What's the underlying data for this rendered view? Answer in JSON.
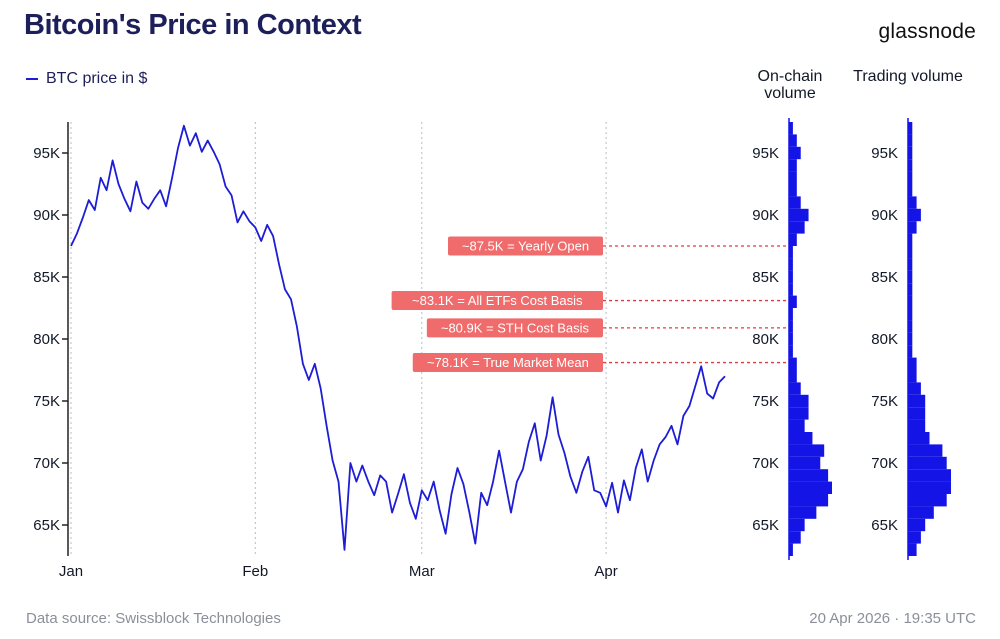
{
  "title": "Bitcoin's Price in Context",
  "brand": "glassnode",
  "legend": {
    "series_label": "BTC price in $"
  },
  "columns": {
    "onchain": "On-chain volume",
    "trading": "Trading volume"
  },
  "footer": {
    "source": "Data source: Swissblock Technologies",
    "timestamp": "20 Apr 2026 · 19:35 UTC"
  },
  "colors": {
    "line": "#1d1dd6",
    "bars": "#1414e6",
    "annotation_bg": "#f06b6b",
    "annotation_line": "#e03c3c",
    "title": "#1c1f5a"
  },
  "chart_data": [
    {
      "type": "line",
      "title": "BTC price in $",
      "ylim": [
        62.5,
        97.5
      ],
      "y_ticks": [
        65,
        70,
        75,
        80,
        85,
        90,
        95
      ],
      "y_tick_labels": [
        "65K",
        "70K",
        "75K",
        "80K",
        "85K",
        "90K",
        "95K"
      ],
      "x_ticks": [
        {
          "label": "Jan",
          "day": 1
        },
        {
          "label": "Feb",
          "day": 32
        },
        {
          "label": "Mar",
          "day": 60
        },
        {
          "label": "Apr",
          "day": 91
        }
      ],
      "xlim": [
        0.5,
        111.5
      ],
      "series": [
        {
          "name": "BTC price in $",
          "points": [
            [
              1,
              87.5
            ],
            [
              2,
              88.5
            ],
            [
              3,
              89.8
            ],
            [
              4,
              91.2
            ],
            [
              5,
              90.4
            ],
            [
              6,
              93.0
            ],
            [
              7,
              92.0
            ],
            [
              8,
              94.4
            ],
            [
              9,
              92.5
            ],
            [
              10,
              91.3
            ],
            [
              11,
              90.3
            ],
            [
              12,
              92.7
            ],
            [
              13,
              91.0
            ],
            [
              14,
              90.5
            ],
            [
              15,
              91.3
            ],
            [
              16,
              92.0
            ],
            [
              17,
              90.7
            ],
            [
              18,
              93.0
            ],
            [
              19,
              95.4
            ],
            [
              20,
              97.2
            ],
            [
              21,
              95.6
            ],
            [
              22,
              96.6
            ],
            [
              23,
              95.1
            ],
            [
              24,
              96.0
            ],
            [
              25,
              95.1
            ],
            [
              26,
              94.1
            ],
            [
              27,
              92.3
            ],
            [
              28,
              91.6
            ],
            [
              29,
              89.4
            ],
            [
              30,
              90.3
            ],
            [
              31,
              89.5
            ],
            [
              32,
              89.0
            ],
            [
              33,
              87.9
            ],
            [
              34,
              89.2
            ],
            [
              35,
              88.3
            ],
            [
              36,
              86.0
            ],
            [
              37,
              84.0
            ],
            [
              38,
              83.2
            ],
            [
              39,
              81.0
            ],
            [
              40,
              78.0
            ],
            [
              41,
              76.7
            ],
            [
              42,
              78.0
            ],
            [
              43,
              76.0
            ],
            [
              44,
              73.0
            ],
            [
              45,
              70.2
            ],
            [
              46,
              68.5
            ],
            [
              47,
              63.0
            ],
            [
              48,
              70.0
            ],
            [
              49,
              68.5
            ],
            [
              50,
              69.8
            ],
            [
              51,
              68.5
            ],
            [
              52,
              67.4
            ],
            [
              53,
              69.0
            ],
            [
              54,
              68.5
            ],
            [
              55,
              66.0
            ],
            [
              56,
              67.5
            ],
            [
              57,
              69.1
            ],
            [
              58,
              66.8
            ],
            [
              59,
              65.5
            ],
            [
              60,
              67.8
            ],
            [
              61,
              67.0
            ],
            [
              62,
              68.5
            ],
            [
              63,
              66.2
            ],
            [
              64,
              64.3
            ],
            [
              65,
              67.5
            ],
            [
              66,
              69.6
            ],
            [
              67,
              68.3
            ],
            [
              68,
              66.0
            ],
            [
              69,
              63.5
            ],
            [
              70,
              67.6
            ],
            [
              71,
              66.6
            ],
            [
              72,
              68.5
            ],
            [
              73,
              71.0
            ],
            [
              74,
              68.5
            ],
            [
              75,
              66.0
            ],
            [
              76,
              68.5
            ],
            [
              77,
              69.5
            ],
            [
              78,
              71.7
            ],
            [
              79,
              73.2
            ],
            [
              80,
              70.2
            ],
            [
              81,
              72.2
            ],
            [
              82,
              75.3
            ],
            [
              83,
              72.3
            ],
            [
              84,
              70.8
            ],
            [
              85,
              68.9
            ],
            [
              86,
              67.6
            ],
            [
              87,
              69.3
            ],
            [
              88,
              70.5
            ],
            [
              89,
              67.8
            ],
            [
              90,
              67.6
            ],
            [
              91,
              66.5
            ],
            [
              92,
              68.4
            ],
            [
              93,
              66.0
            ],
            [
              94,
              68.6
            ],
            [
              95,
              67.0
            ],
            [
              96,
              69.6
            ],
            [
              97,
              71.1
            ],
            [
              98,
              68.5
            ],
            [
              99,
              70.2
            ],
            [
              100,
              71.5
            ],
            [
              101,
              72.1
            ],
            [
              102,
              73.0
            ],
            [
              103,
              71.5
            ],
            [
              104,
              73.8
            ],
            [
              105,
              74.6
            ],
            [
              106,
              76.2
            ],
            [
              107,
              77.8
            ],
            [
              108,
              75.6
            ],
            [
              109,
              75.2
            ],
            [
              110,
              76.5
            ],
            [
              111,
              77.0
            ]
          ]
        }
      ]
    },
    {
      "type": "bar",
      "title": "On-chain volume",
      "orientation": "horizontal",
      "y_ticks": [
        65,
        70,
        75,
        80,
        85,
        90,
        95
      ],
      "y_tick_labels": [
        "65K",
        "70K",
        "75K",
        "80K",
        "85K",
        "90K",
        "95K"
      ],
      "categories": [
        63,
        64,
        65,
        66,
        67,
        68,
        69,
        70,
        71,
        72,
        73,
        74,
        75,
        76,
        77,
        78,
        79,
        80,
        81,
        82,
        83,
        84,
        85,
        86,
        87,
        88,
        89,
        90,
        91,
        92,
        93,
        94,
        95,
        96,
        97
      ],
      "values": [
        1,
        3,
        4,
        7,
        10,
        11,
        10,
        8,
        9,
        6,
        4,
        5,
        5,
        3,
        2,
        2,
        1,
        1,
        1,
        1,
        2,
        1,
        1,
        1,
        1,
        2,
        4,
        5,
        3,
        2,
        2,
        2,
        3,
        2,
        1
      ]
    },
    {
      "type": "bar",
      "title": "Trading volume",
      "orientation": "horizontal",
      "y_ticks": [
        65,
        70,
        75,
        80,
        85,
        90,
        95
      ],
      "y_tick_labels": [
        "65K",
        "70K",
        "75K",
        "80K",
        "85K",
        "90K",
        "95K"
      ],
      "categories": [
        63,
        64,
        65,
        66,
        67,
        68,
        69,
        70,
        71,
        72,
        73,
        74,
        75,
        76,
        77,
        78,
        79,
        80,
        81,
        82,
        83,
        84,
        85,
        86,
        87,
        88,
        89,
        90,
        91,
        92,
        93,
        94,
        95,
        96,
        97
      ],
      "values": [
        2,
        3,
        4,
        6,
        9,
        10,
        10,
        9,
        8,
        5,
        4,
        4,
        4,
        3,
        2,
        2,
        1,
        1,
        1,
        1,
        1,
        1,
        1,
        1,
        1,
        1,
        2,
        3,
        2,
        1,
        1,
        1,
        1,
        1,
        1
      ]
    }
  ],
  "annotations": [
    {
      "label": "~87.5K = Yearly Open",
      "value": 87.5
    },
    {
      "label": "~83.1K = All ETFs Cost Basis",
      "value": 83.1
    },
    {
      "label": "~80.9K = STH Cost Basis",
      "value": 80.9
    },
    {
      "label": "~78.1K = True Market Mean",
      "value": 78.1
    }
  ]
}
